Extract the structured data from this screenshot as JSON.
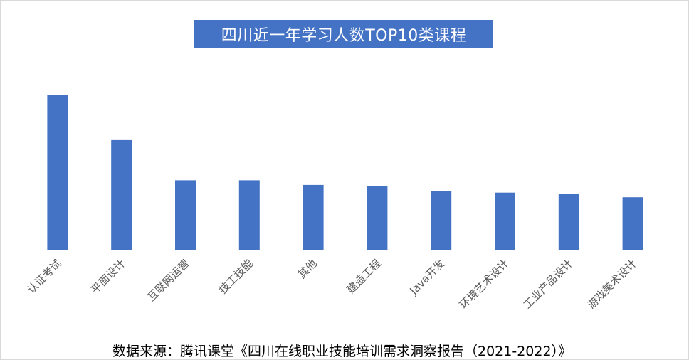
{
  "chart_data": {
    "type": "bar",
    "title": "四川近一年学习人数TOP10类课程",
    "categories": [
      "认证考试",
      "平面设计",
      "互联网运营",
      "技工技能",
      "其他",
      "建造工程",
      "Java开发",
      "环境艺术设计",
      "工业产品设计",
      "游戏美术设计"
    ],
    "values": [
      100,
      71,
      45,
      45,
      42,
      41,
      38,
      37,
      36,
      34
    ],
    "ylim": [
      0,
      100
    ],
    "grid": false,
    "legend": "none",
    "bar_color": "#4472c4"
  },
  "source_note": "数据来源：腾讯课堂《四川在线职业技能培训需求洞察报告（2021-2022）》"
}
